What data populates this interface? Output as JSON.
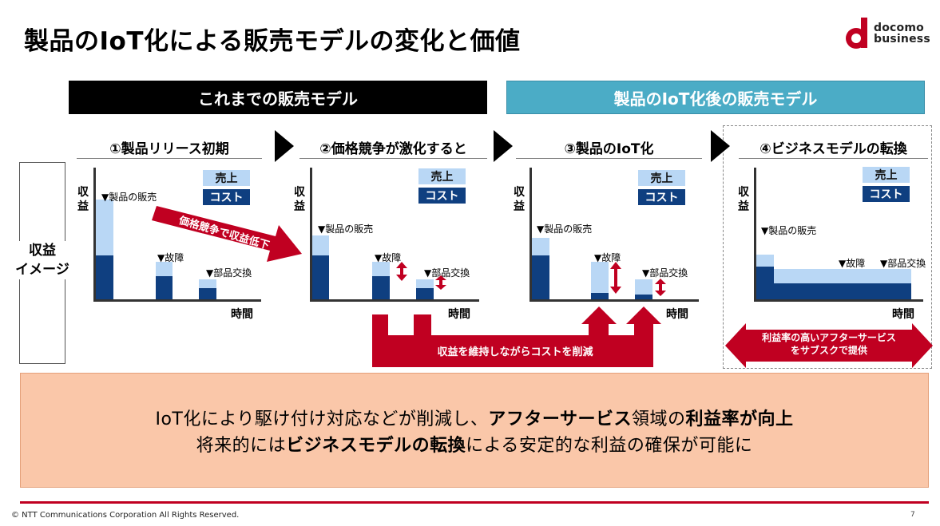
{
  "title": "製品のIoT化による販売モデルの変化と価値",
  "logo": {
    "line1": "docomo",
    "line2": "business"
  },
  "headers": {
    "old_model": "これまでの販売モデル",
    "new_model": "製品のIoT化後の販売モデル"
  },
  "side_label": {
    "line1": "収益",
    "line2": "イメージ"
  },
  "legend": {
    "sales": "売上",
    "cost": "コスト"
  },
  "axis": {
    "y": "収益",
    "x": "時間"
  },
  "panels": [
    {
      "title": "①製品リリース初期",
      "labels": [
        "▼製品の販売",
        "▼故障",
        "▼部品交換"
      ]
    },
    {
      "title": "②価格競争が激化すると",
      "labels": [
        "▼製品の販売",
        "▼故障",
        "▼部品交換"
      ]
    },
    {
      "title": "③製品のIoT化",
      "labels": [
        "▼製品の販売",
        "▼故障",
        "▼部品交換"
      ]
    },
    {
      "title": "④ビジネスモデルの転換",
      "labels": [
        "▼製品の販売",
        "▼故障",
        "▼部品交換"
      ]
    }
  ],
  "arrows": {
    "price_drop": "価格競争で収益低下",
    "cost_cut": "収益を維持しながらコストを削減",
    "subscription_line1": "利益率の高いアフターサービス",
    "subscription_line2": "をサブスクで提供"
  },
  "bottom": {
    "line1": [
      {
        "text": "IoT化により駆け付け対応などが削減し、",
        "bold": false
      },
      {
        "text": "アフターサービス",
        "bold": true
      },
      {
        "text": "領域の",
        "bold": false
      },
      {
        "text": "利益率が向上",
        "bold": true
      }
    ],
    "line2": [
      {
        "text": "将来的には",
        "bold": false
      },
      {
        "text": "ビジネスモデルの転換",
        "bold": true
      },
      {
        "text": "による安定的な利益の確保が可能に",
        "bold": false
      }
    ]
  },
  "colors": {
    "sales": "#b9d7f5",
    "cost": "#0f3f80",
    "accent": "#c00021",
    "new_header": "#4bacc6",
    "summary_bg": "#fac7a9"
  },
  "footer": {
    "copyright": "© NTT Communications Corporation All Rights Reserved.",
    "page": "7"
  }
}
